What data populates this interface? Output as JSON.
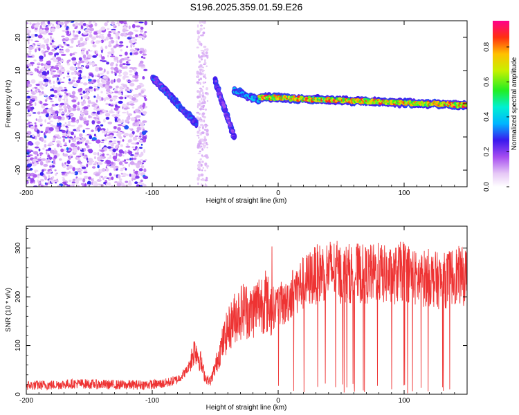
{
  "title": "S196.2025.359.01.59.E26",
  "chart_data": [
    {
      "type": "heatmap",
      "name": "spectrogram",
      "xlabel": "Height of straight line (km)",
      "ylabel": "Frequency (Hz)",
      "xlim": [
        -200,
        150
      ],
      "ylim": [
        -25,
        25
      ],
      "x_ticks": [
        -200,
        -100,
        0,
        100
      ],
      "y_ticks": [
        -20,
        -10,
        0,
        10,
        20
      ],
      "description_of_signal": [
        {
          "x_range": [
            -200,
            -110
          ],
          "frequency": "broadband noise",
          "amplitude_max": 0.3
        },
        {
          "x_range": [
            -100,
            -65
          ],
          "frequency_start": 8,
          "frequency_end": -6,
          "amplitude_max": 0.35
        },
        {
          "x_range": [
            -50,
            -35
          ],
          "frequency_start": 7,
          "frequency_end": -10,
          "amplitude_max": 0.3
        },
        {
          "x_range": [
            -35,
            -15
          ],
          "frequency_start": 4,
          "frequency_end": 1,
          "amplitude_max": 0.45
        },
        {
          "x_range": [
            -15,
            150
          ],
          "frequency_start": 2,
          "frequency_end": -0.5,
          "amplitude_max": 0.95
        }
      ],
      "colorbar": {
        "label": "Normalized spectral amplitude",
        "range": [
          0.0,
          0.95
        ],
        "ticks": [
          "0.0",
          "0.2",
          "0.4",
          "0.6",
          "0.8"
        ]
      }
    },
    {
      "type": "line",
      "name": "snr",
      "xlabel": "Height of straight line (km)",
      "ylabel": "SNR (10 * v/v)",
      "xlim": [
        -200,
        150
      ],
      "ylim": [
        0,
        345
      ],
      "x_ticks": [
        -200,
        -100,
        0,
        100
      ],
      "y_ticks": [
        0,
        100,
        200,
        300
      ],
      "color": "#ee3333",
      "series": [
        {
          "name": "SNR",
          "x": [
            -200,
            -180,
            -160,
            -140,
            -120,
            -100,
            -90,
            -80,
            -72,
            -66,
            -62,
            -58,
            -54,
            -50,
            -46,
            -42,
            -38,
            -34,
            -30,
            -26,
            -22,
            -18,
            -14,
            -10,
            -6,
            -2,
            2,
            6,
            10,
            14,
            18,
            22,
            26,
            30,
            34,
            38,
            42,
            46,
            50,
            60,
            70,
            80,
            90,
            100,
            110,
            120,
            130,
            140,
            150
          ],
          "values": [
            18,
            19,
            22,
            20,
            19,
            20,
            22,
            30,
            50,
            95,
            70,
            35,
            25,
            55,
            90,
            120,
            140,
            160,
            170,
            175,
            165,
            180,
            190,
            190,
            175,
            180,
            185,
            185,
            205,
            215,
            225,
            230,
            240,
            245,
            250,
            255,
            255,
            255,
            245,
            250,
            245,
            250,
            240,
            255,
            235,
            240,
            230,
            245,
            240
          ]
        }
      ]
    }
  ]
}
